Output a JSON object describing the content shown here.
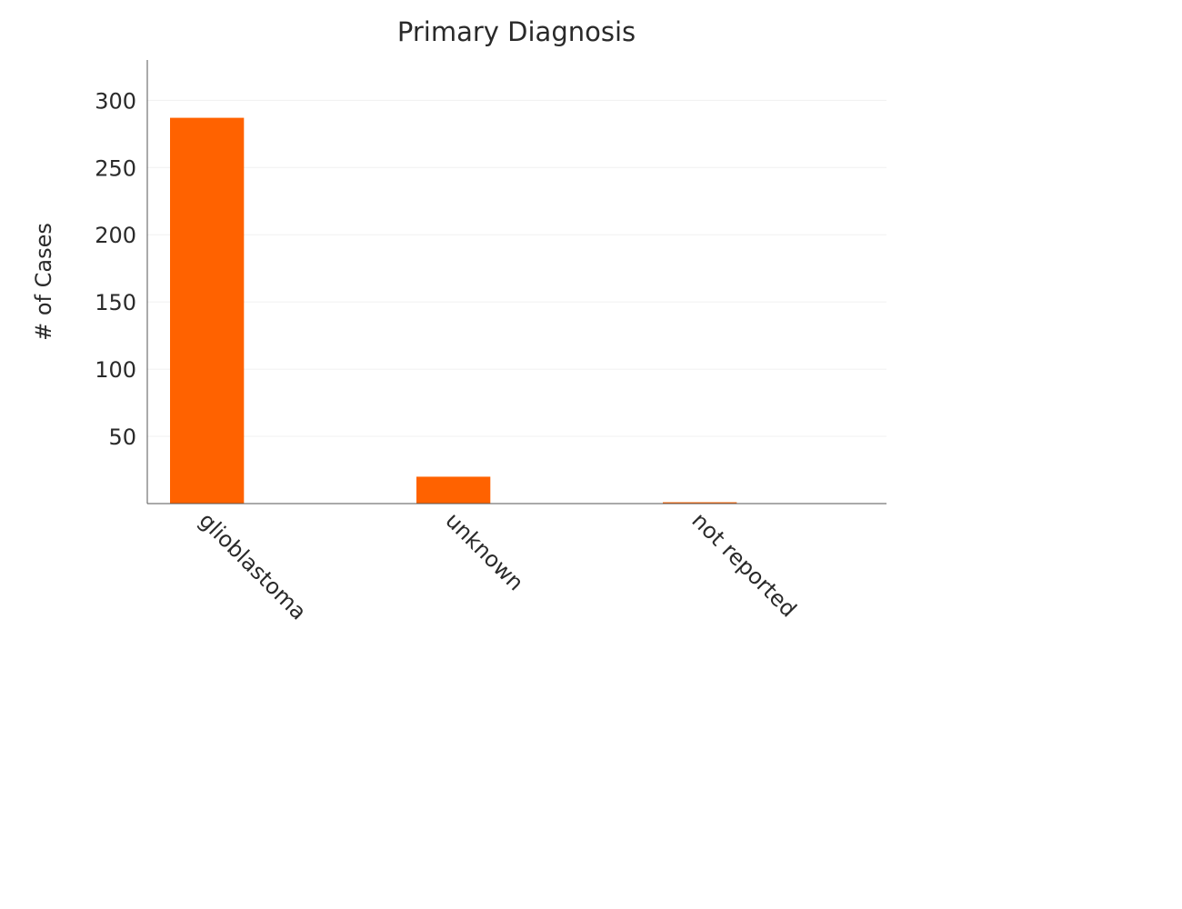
{
  "chart_data": {
    "type": "bar",
    "title": "Primary Diagnosis",
    "xlabel": "",
    "ylabel": "# of Cases",
    "categories": [
      "glioblastoma",
      "unknown",
      "not reported"
    ],
    "values": [
      287,
      20,
      1
    ],
    "ylim": [
      0,
      330
    ],
    "yticks": [
      50,
      100,
      150,
      200,
      250,
      300
    ],
    "grid": true,
    "legend": "none",
    "bar_color": "#ff6200"
  }
}
